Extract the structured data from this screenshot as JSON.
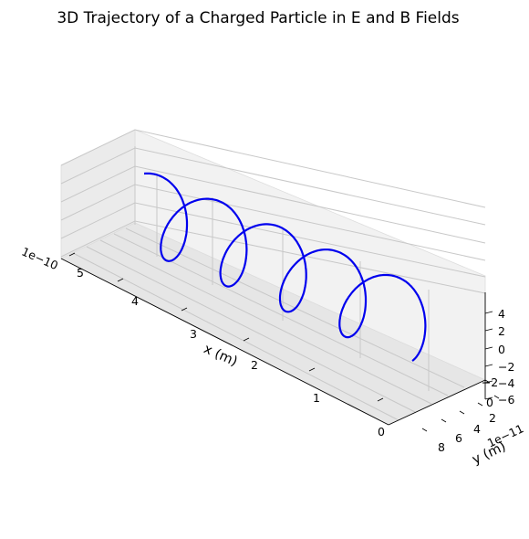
{
  "chart_data": {
    "type": "line3d",
    "title": "3D Trajectory of a Charged Particle in E and B Fields",
    "xlabel": "x (m)",
    "ylabel": "y (m)",
    "zlabel": "",
    "x_offset_text": "1e−10",
    "y_offset_text": "1e−11",
    "x_ticks": [
      "0",
      "1",
      "2",
      "3",
      "4",
      "5"
    ],
    "y_ticks": [
      "8",
      "6",
      "4",
      "2",
      "0",
      "−2"
    ],
    "z_ticks": [
      "−6",
      "−4",
      "−2",
      "0",
      "2",
      "4"
    ],
    "xlim": [
      -0.2,
      5.6
    ],
    "ylim": [
      -3,
      9
    ],
    "zlim": [
      -6.5,
      5.2
    ],
    "grid": true,
    "series": [
      {
        "color": "#0000ee",
        "description": "helix: 4.5 turns, x from 5.1 to 0.4 (×1e-10 m), radius ≈4.8 (×1e-11 m)",
        "turns": 4.5,
        "x_start": 5.1,
        "x_end": 0.4,
        "radius": 4.8
      }
    ]
  }
}
